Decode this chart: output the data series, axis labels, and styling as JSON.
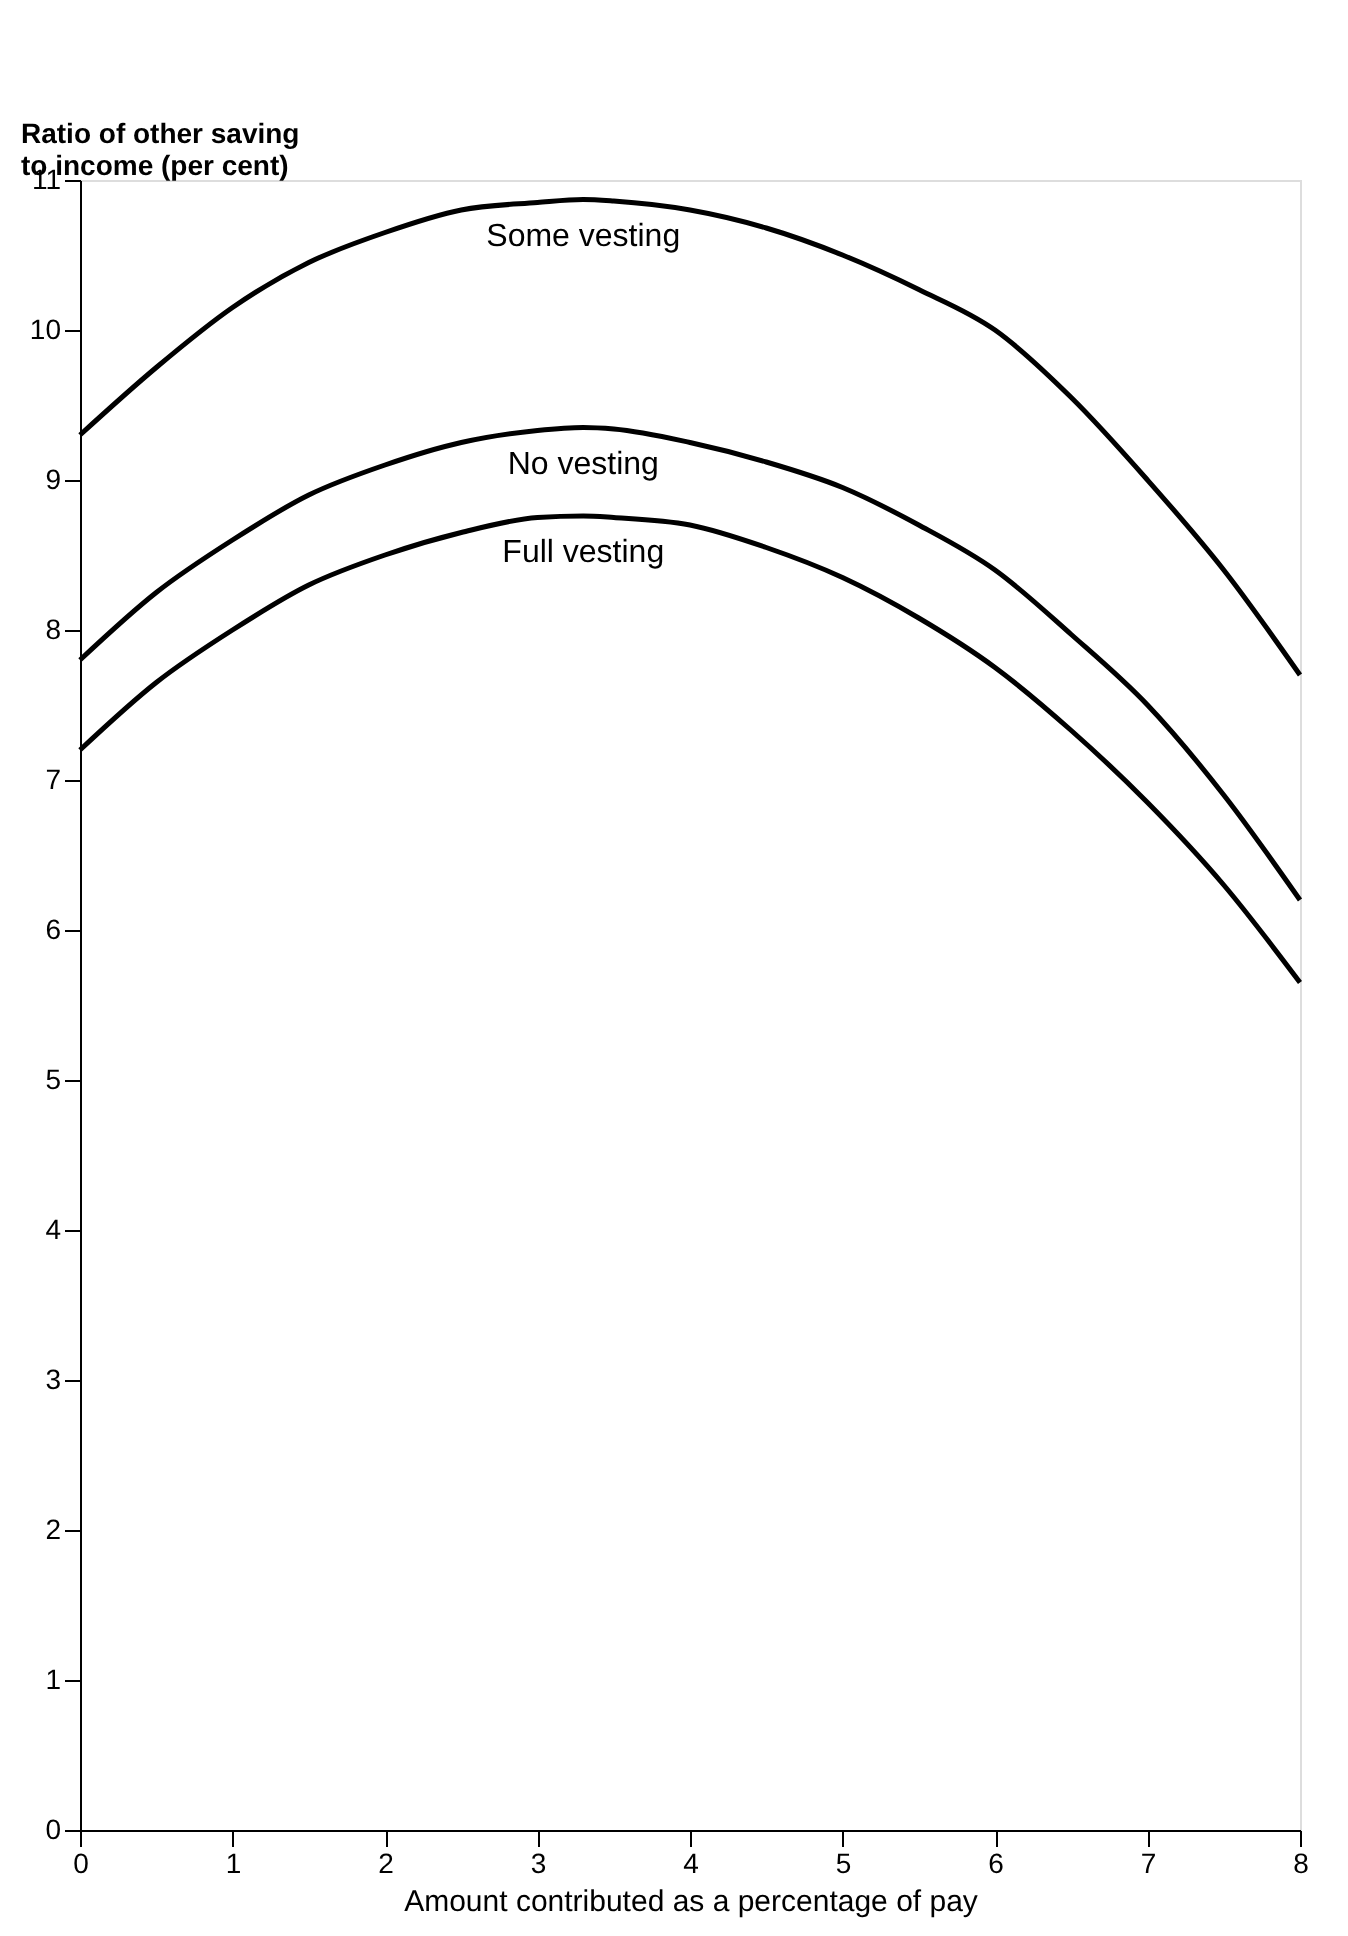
{
  "chart_data": {
    "type": "line",
    "xlabel": "Amount contributed as a percentage of pay",
    "ylabel": "Ratio of other saving\nto income (per cent)",
    "x": [
      0,
      0.5,
      1,
      1.5,
      2,
      2.5,
      3,
      3.3,
      3.5,
      4,
      4.5,
      5,
      5.5,
      6,
      6.5,
      7,
      7.5,
      8
    ],
    "series": [
      {
        "name": "Some vesting",
        "color": "#000000",
        "values": [
          9.3,
          9.75,
          10.15,
          10.45,
          10.65,
          10.8,
          10.85,
          10.87,
          10.86,
          10.8,
          10.68,
          10.5,
          10.27,
          10.0,
          9.55,
          9.0,
          8.4,
          7.7
        ]
      },
      {
        "name": "No vesting",
        "color": "#000000",
        "values": [
          7.8,
          8.25,
          8.6,
          8.9,
          9.1,
          9.25,
          9.33,
          9.35,
          9.34,
          9.25,
          9.12,
          8.95,
          8.7,
          8.4,
          7.97,
          7.5,
          6.9,
          6.2
        ]
      },
      {
        "name": "Full vesting",
        "color": "#000000",
        "values": [
          7.2,
          7.65,
          8.0,
          8.3,
          8.5,
          8.65,
          8.75,
          8.76,
          8.75,
          8.7,
          8.55,
          8.35,
          8.08,
          7.75,
          7.33,
          6.85,
          6.3,
          5.65
        ]
      }
    ],
    "xlim": [
      0,
      8
    ],
    "xticks": [
      0,
      1,
      2,
      3,
      4,
      5,
      6,
      7,
      8
    ],
    "ylim": [
      0,
      11
    ],
    "yticks": [
      0,
      1,
      2,
      3,
      4,
      5,
      6,
      7,
      8,
      9,
      10,
      11
    ],
    "grid": false,
    "marker": "none",
    "line_style": "solid"
  }
}
